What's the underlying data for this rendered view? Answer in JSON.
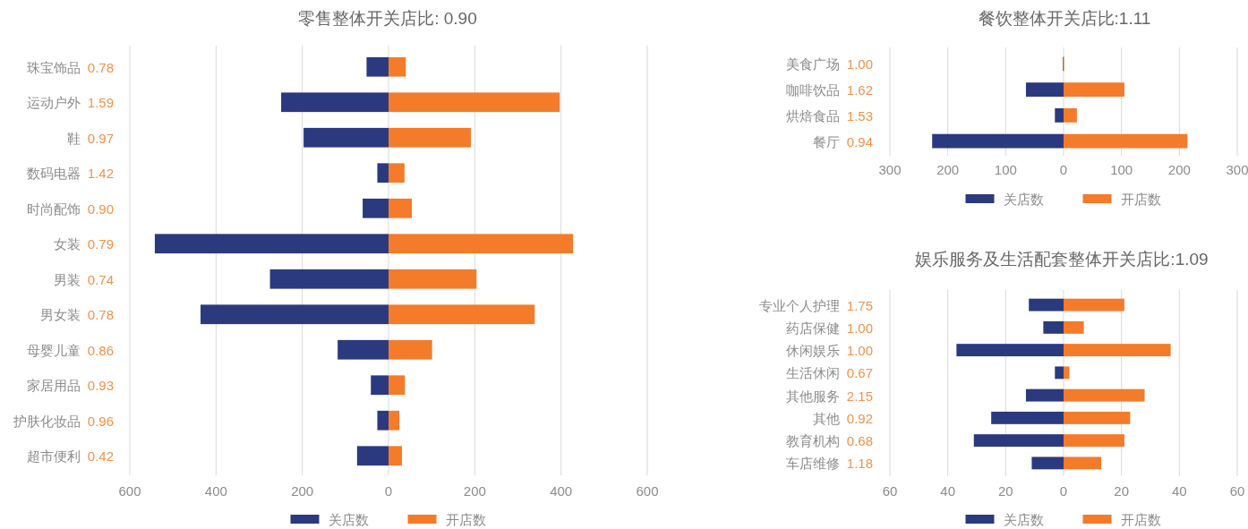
{
  "chart_data": [
    {
      "type": "bar",
      "orientation": "horizontal",
      "stacked": true,
      "title": "零售整体开关店比: 0.90",
      "categories": [
        "珠宝饰品 0.78",
        "运动户外 1.59",
        "鞋 0.97",
        "数码电器 1.42",
        "时尚配饰 0.90",
        "女装 0.79",
        "男装 0.74",
        "男女装 0.78",
        "母婴儿童 0.86",
        "家居用品 0.93",
        "护肤化妆品 0.96",
        "超市便利 0.42"
      ],
      "series": [
        {
          "name": "关店数",
          "color": "#2b3a7e",
          "values": [
            -51,
            -249,
            -197,
            -26,
            -60,
            -542,
            -275,
            -436,
            -118,
            -41,
            -26,
            -73
          ]
        },
        {
          "name": "开店数",
          "color": "#f47b2a",
          "values": [
            40,
            397,
            191,
            37,
            54,
            428,
            204,
            339,
            101,
            38,
            25,
            31
          ]
        }
      ],
      "xlim": [
        -600,
        600
      ],
      "xticks": [
        {
          "value": -600,
          "label": "600"
        },
        {
          "value": -400,
          "label": "400"
        },
        {
          "value": -200,
          "label": "200"
        },
        0,
        200,
        400,
        600
      ],
      "grid": "x",
      "legend": "bottom"
    },
    {
      "type": "bar",
      "orientation": "horizontal",
      "stacked": true,
      "title": "餐饮整体开关店比:1.11",
      "categories": [
        "美食广场 1.00",
        "咖啡饮品 1.62",
        "烘焙食品 1.53",
        "餐厅 0.94"
      ],
      "series": [
        {
          "name": "关店数",
          "color": "#2b3a7e",
          "values": [
            -1,
            -65,
            -15,
            -227
          ]
        },
        {
          "name": "开店数",
          "color": "#f47b2a",
          "values": [
            1,
            105,
            23,
            214
          ]
        }
      ],
      "xlim": [
        -300,
        300
      ],
      "xticks": [
        {
          "value": -300,
          "label": "300"
        },
        {
          "value": -200,
          "label": "200"
        },
        {
          "value": -100,
          "label": "100"
        },
        0,
        100,
        200,
        300
      ],
      "grid": "x",
      "legend": "bottom"
    },
    {
      "type": "bar",
      "orientation": "horizontal",
      "stacked": true,
      "title": "娱乐服务及生活配套整体开关店比:1.09",
      "categories": [
        "专业个人护理 1.75",
        "药店保健 1.00",
        "休闲娱乐 1.00",
        "生活休闲 0.67",
        "其他服务 2.15",
        "其他 0.92",
        "教育机构 0.68",
        "车店维修 1.18"
      ],
      "series": [
        {
          "name": "关店数",
          "color": "#2b3a7e",
          "values": [
            -12,
            -7,
            -37,
            -3,
            -13,
            -25,
            -31,
            -11
          ]
        },
        {
          "name": "开店数",
          "color": "#f47b2a",
          "values": [
            21,
            7,
            37,
            2,
            28,
            23,
            21,
            13
          ]
        }
      ],
      "xlim": [
        -60,
        60
      ],
      "xticks": [
        {
          "value": -60,
          "label": "60"
        },
        {
          "value": -40,
          "label": "40"
        },
        {
          "value": -20,
          "label": "20"
        },
        0,
        20,
        40,
        60
      ],
      "grid": "x",
      "legend": "bottom"
    }
  ]
}
